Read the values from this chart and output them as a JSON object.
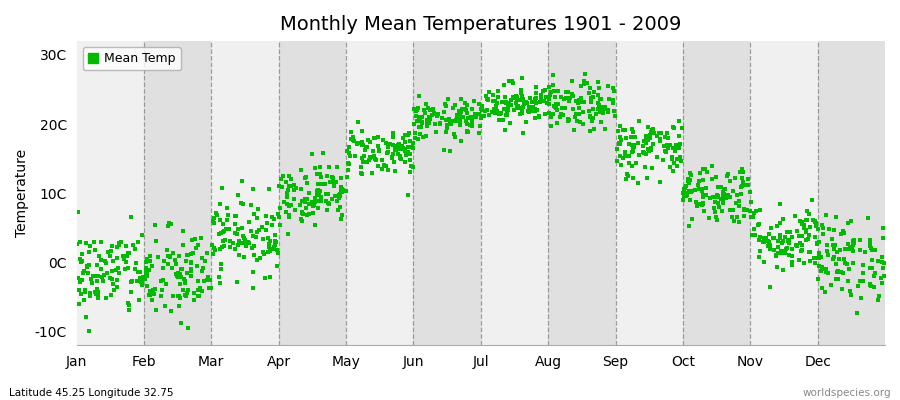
{
  "title": "Monthly Mean Temperatures 1901 - 2009",
  "ylabel": "Temperature",
  "bottom_left": "Latitude 45.25 Longitude 32.75",
  "bottom_right": "worldspecies.org",
  "legend_label": "Mean Temp",
  "dot_color": "#00bb00",
  "background_color": "#f0f0f0",
  "alt_band_color": "#e0e0e0",
  "ylim": [
    -12,
    32
  ],
  "yticks": [
    -10,
    0,
    10,
    20,
    30
  ],
  "ytick_labels": [
    "-10C",
    "0C",
    "10C",
    "20C",
    "30C"
  ],
  "month_names": [
    "Jan",
    "Feb",
    "Mar",
    "Apr",
    "May",
    "Jun",
    "Jul",
    "Aug",
    "Sep",
    "Oct",
    "Nov",
    "Dec"
  ],
  "month_means": [
    -1.5,
    -2.0,
    4.0,
    10.0,
    16.0,
    20.5,
    23.0,
    22.5,
    16.5,
    10.0,
    3.5,
    0.5
  ],
  "month_stds": [
    3.2,
    3.5,
    2.8,
    2.2,
    1.8,
    1.5,
    1.5,
    1.8,
    2.2,
    2.2,
    2.5,
    3.0
  ],
  "n_years": 109,
  "seed": 42,
  "figsize": [
    9.0,
    4.0
  ],
  "dpi": 100
}
